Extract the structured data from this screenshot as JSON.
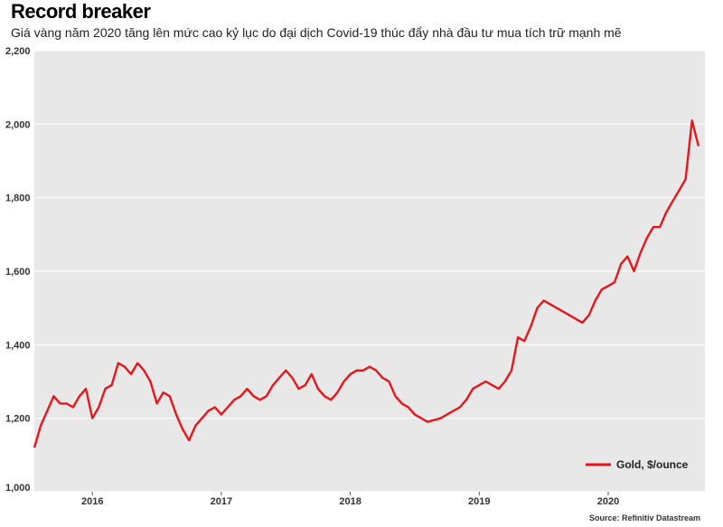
{
  "title": "Record breaker",
  "subtitle": "Giá vàng năm 2020 tăng lên mức cao kỷ lục do đại dịch Covid-19 thúc đẩy nhà đầu tư mua tích trữ mạnh mẽ",
  "source": "Source: Refinitiv Datastream",
  "chart_data": {
    "type": "line",
    "title": "Record breaker",
    "xlabel": "",
    "ylabel": "",
    "ylim": [
      1000,
      2200
    ],
    "xlim": [
      2015.55,
      2020.75
    ],
    "yticks": [
      "1,000",
      "1,200",
      "1,400",
      "1,600",
      "1,800",
      "2,000",
      "2,200"
    ],
    "ytick_values": [
      1000,
      1200,
      1400,
      1600,
      1800,
      2000,
      2200
    ],
    "xticks": [
      "2016",
      "2017",
      "2018",
      "2019",
      "2020"
    ],
    "xtick_values": [
      2016.0,
      2017.0,
      2018.0,
      2019.0,
      2020.0
    ],
    "grid": "horizontal",
    "legend_position": "bottom-right",
    "line_color": "#e8161b",
    "series": [
      {
        "name": "Gold, $/ounce",
        "x": [
          2015.55,
          2015.6,
          2015.65,
          2015.7,
          2015.75,
          2015.8,
          2015.85,
          2015.9,
          2015.95,
          2016.0,
          2016.05,
          2016.1,
          2016.15,
          2016.2,
          2016.25,
          2016.3,
          2016.35,
          2016.4,
          2016.45,
          2016.5,
          2016.55,
          2016.6,
          2016.65,
          2016.7,
          2016.75,
          2016.8,
          2016.85,
          2016.9,
          2016.95,
          2017.0,
          2017.05,
          2017.1,
          2017.15,
          2017.2,
          2017.25,
          2017.3,
          2017.35,
          2017.4,
          2017.45,
          2017.5,
          2017.55,
          2017.6,
          2017.65,
          2017.7,
          2017.75,
          2017.8,
          2017.85,
          2017.9,
          2017.95,
          2018.0,
          2018.05,
          2018.1,
          2018.15,
          2018.2,
          2018.25,
          2018.3,
          2018.35,
          2018.4,
          2018.45,
          2018.5,
          2018.55,
          2018.6,
          2018.65,
          2018.7,
          2018.75,
          2018.8,
          2018.85,
          2018.9,
          2018.95,
          2019.0,
          2019.05,
          2019.1,
          2019.15,
          2019.2,
          2019.25,
          2019.3,
          2019.35,
          2019.4,
          2019.45,
          2019.5,
          2019.55,
          2019.6,
          2019.65,
          2019.7,
          2019.75,
          2019.8,
          2019.85,
          2019.9,
          2019.95,
          2020.0,
          2020.05,
          2020.1,
          2020.15,
          2020.2,
          2020.25,
          2020.3,
          2020.35,
          2020.4,
          2020.45,
          2020.5,
          2020.55,
          2020.6,
          2020.65,
          2020.7
        ],
        "values": [
          1120,
          1180,
          1220,
          1260,
          1240,
          1240,
          1230,
          1260,
          1280,
          1200,
          1230,
          1280,
          1290,
          1350,
          1340,
          1320,
          1350,
          1330,
          1300,
          1240,
          1270,
          1260,
          1210,
          1170,
          1140,
          1180,
          1200,
          1220,
          1230,
          1210,
          1230,
          1250,
          1260,
          1280,
          1260,
          1250,
          1260,
          1290,
          1310,
          1330,
          1310,
          1280,
          1290,
          1320,
          1280,
          1260,
          1250,
          1270,
          1300,
          1320,
          1330,
          1330,
          1340,
          1330,
          1310,
          1300,
          1260,
          1240,
          1230,
          1210,
          1200,
          1190,
          1195,
          1200,
          1210,
          1220,
          1230,
          1250,
          1280,
          1290,
          1300,
          1290,
          1280,
          1300,
          1330,
          1420,
          1410,
          1450,
          1500,
          1520,
          1510,
          1500,
          1490,
          1480,
          1470,
          1460,
          1480,
          1520,
          1550,
          1560,
          1570,
          1620,
          1640,
          1600,
          1650,
          1690,
          1720,
          1720,
          1760,
          1790,
          1820,
          1850,
          2010,
          1940
        ]
      }
    ]
  }
}
